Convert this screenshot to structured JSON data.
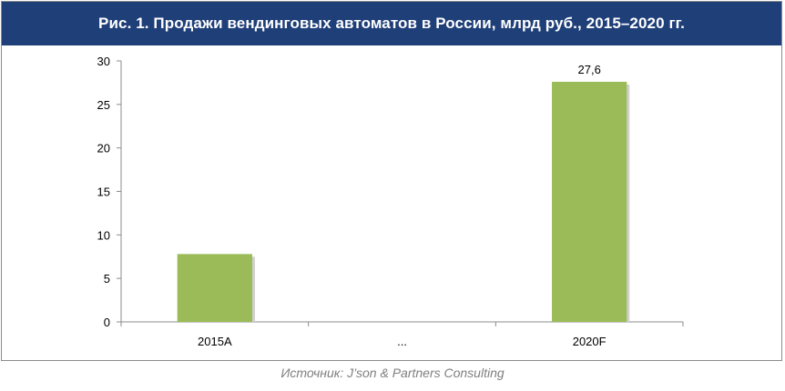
{
  "title": "Рис. 1. Продажи вендинговых автоматов в России, млрд руб., 2015–2020 гг.",
  "source": "Источник: J’son & Partners Consulting",
  "colors": {
    "title_bg": "#1f3f78",
    "bar": "#9bbb59",
    "axis": "#8c8c8c"
  },
  "chart_data": {
    "type": "bar",
    "categories": [
      "2015A",
      "...",
      "2020F"
    ],
    "values": [
      7.8,
      null,
      27.6
    ],
    "data_labels": [
      "",
      "",
      "27,6"
    ],
    "title": "Рис. 1. Продажи вендинговых автоматов в России, млрд руб., 2015–2020 гг.",
    "xlabel": "",
    "ylabel": "",
    "ylim": [
      0,
      30
    ],
    "yticks": [
      0,
      5,
      10,
      15,
      20,
      25,
      30
    ],
    "grid": false,
    "legend": "none"
  }
}
